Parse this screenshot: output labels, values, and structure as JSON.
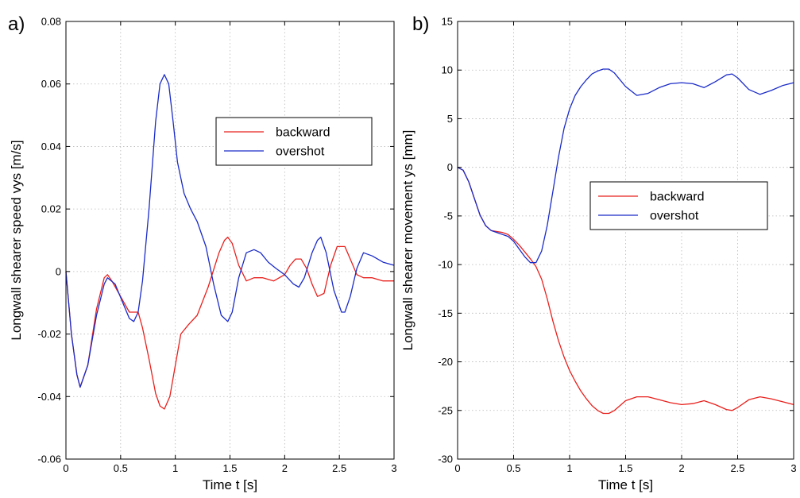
{
  "chart_data": [
    {
      "type": "line",
      "panel_label": "a)",
      "xlabel": "Time t [s]",
      "ylabel": "Longwall shearer speed vys [m/s]",
      "xlim": [
        0,
        3
      ],
      "ylim": [
        -0.06,
        0.08
      ],
      "xticks": [
        0,
        0.5,
        1,
        1.5,
        2,
        2.5,
        3
      ],
      "xtick_labels": [
        "0",
        "0.5",
        "1",
        "1.5",
        "2",
        "2.5",
        "3"
      ],
      "yticks": [
        -0.06,
        -0.04,
        -0.02,
        0,
        0.02,
        0.04,
        0.06,
        0.08
      ],
      "ytick_labels": [
        "-0.06",
        "-0.04",
        "-0.02",
        "0",
        "0.02",
        "0.04",
        "0.06",
        "0.08"
      ],
      "grid": true,
      "legend_position": "upper-right",
      "series": [
        {
          "name": "backward",
          "color": "#e8201c",
          "x": [
            0,
            0.05,
            0.1,
            0.13,
            0.2,
            0.28,
            0.35,
            0.38,
            0.42,
            0.5,
            0.58,
            0.62,
            0.66,
            0.7,
            0.76,
            0.82,
            0.86,
            0.9,
            0.95,
            1.0,
            1.05,
            1.12,
            1.2,
            1.3,
            1.4,
            1.45,
            1.48,
            1.52,
            1.58,
            1.65,
            1.72,
            1.8,
            1.9,
            2.0,
            2.05,
            2.1,
            2.15,
            2.2,
            2.25,
            2.3,
            2.36,
            2.42,
            2.48,
            2.55,
            2.6,
            2.66,
            2.72,
            2.8,
            2.9,
            3.0
          ],
          "y": [
            0,
            -0.02,
            -0.033,
            -0.037,
            -0.03,
            -0.012,
            -0.002,
            -0.001,
            -0.003,
            -0.008,
            -0.013,
            -0.013,
            -0.013,
            -0.018,
            -0.028,
            -0.039,
            -0.043,
            -0.044,
            -0.04,
            -0.03,
            -0.02,
            -0.017,
            -0.014,
            -0.005,
            0.006,
            0.01,
            0.011,
            0.009,
            0.002,
            -0.003,
            -0.002,
            -0.002,
            -0.003,
            -0.001,
            0.002,
            0.004,
            0.004,
            0.001,
            -0.004,
            -0.008,
            -0.007,
            0.002,
            0.008,
            0.008,
            0.004,
            -0.001,
            -0.002,
            -0.002,
            -0.003,
            -0.003
          ]
        },
        {
          "name": "overshot",
          "color": "#1a2bc8",
          "x": [
            0,
            0.05,
            0.1,
            0.13,
            0.2,
            0.28,
            0.35,
            0.38,
            0.45,
            0.52,
            0.58,
            0.62,
            0.66,
            0.7,
            0.76,
            0.82,
            0.86,
            0.9,
            0.94,
            0.98,
            1.02,
            1.08,
            1.14,
            1.2,
            1.28,
            1.35,
            1.42,
            1.48,
            1.52,
            1.58,
            1.65,
            1.72,
            1.78,
            1.85,
            1.92,
            2.0,
            2.08,
            2.13,
            2.18,
            2.25,
            2.3,
            2.33,
            2.38,
            2.45,
            2.52,
            2.55,
            2.6,
            2.66,
            2.72,
            2.8,
            2.9,
            3.0
          ],
          "y": [
            0,
            -0.02,
            -0.033,
            -0.037,
            -0.03,
            -0.014,
            -0.004,
            -0.002,
            -0.004,
            -0.01,
            -0.015,
            -0.016,
            -0.013,
            -0.003,
            0.02,
            0.048,
            0.06,
            0.063,
            0.06,
            0.048,
            0.035,
            0.025,
            0.02,
            0.016,
            0.008,
            -0.004,
            -0.014,
            -0.016,
            -0.013,
            -0.002,
            0.006,
            0.007,
            0.006,
            0.003,
            0.001,
            -0.001,
            -0.004,
            -0.005,
            -0.002,
            0.006,
            0.01,
            0.011,
            0.006,
            -0.006,
            -0.013,
            -0.013,
            -0.008,
            0.001,
            0.006,
            0.005,
            0.003,
            0.002
          ]
        }
      ]
    },
    {
      "type": "line",
      "panel_label": "b)",
      "xlabel": "Time t [s]",
      "ylabel": "Longwall shearer movement ys [mm]",
      "xlim": [
        0,
        3
      ],
      "ylim": [
        -30,
        15
      ],
      "xticks": [
        0,
        0.5,
        1,
        1.5,
        2,
        2.5,
        3
      ],
      "xtick_labels": [
        "0",
        "0.5",
        "1",
        "1.5",
        "2",
        "2.5",
        "3"
      ],
      "yticks": [
        -30,
        -25,
        -20,
        -15,
        -10,
        -5,
        0,
        5,
        10,
        15
      ],
      "ytick_labels": [
        "-30",
        "-25",
        "-20",
        "-15",
        "-10",
        "-5",
        "0",
        "5",
        "10",
        "15"
      ],
      "grid": true,
      "legend_position": "center-right",
      "series": [
        {
          "name": "backward",
          "color": "#e8201c",
          "x": [
            0,
            0.05,
            0.1,
            0.15,
            0.2,
            0.25,
            0.3,
            0.35,
            0.4,
            0.45,
            0.5,
            0.55,
            0.6,
            0.65,
            0.7,
            0.75,
            0.8,
            0.85,
            0.9,
            0.95,
            1.0,
            1.05,
            1.1,
            1.15,
            1.2,
            1.25,
            1.3,
            1.35,
            1.4,
            1.5,
            1.6,
            1.7,
            1.8,
            1.9,
            2.0,
            2.1,
            2.2,
            2.3,
            2.4,
            2.45,
            2.5,
            2.6,
            2.7,
            2.8,
            2.9,
            3.0
          ],
          "y": [
            0,
            -0.3,
            -1.5,
            -3.2,
            -4.9,
            -6.0,
            -6.5,
            -6.6,
            -6.7,
            -6.9,
            -7.4,
            -8.0,
            -8.7,
            -9.4,
            -10.2,
            -11.5,
            -13.5,
            -15.8,
            -17.8,
            -19.5,
            -20.9,
            -22.0,
            -23.0,
            -23.8,
            -24.5,
            -25.0,
            -25.3,
            -25.3,
            -25.0,
            -24.0,
            -23.6,
            -23.6,
            -23.9,
            -24.2,
            -24.4,
            -24.3,
            -24.0,
            -24.4,
            -24.9,
            -25.0,
            -24.7,
            -23.9,
            -23.6,
            -23.8,
            -24.1,
            -24.4
          ]
        },
        {
          "name": "overshot",
          "color": "#1a2bc8",
          "x": [
            0,
            0.05,
            0.1,
            0.15,
            0.2,
            0.25,
            0.3,
            0.35,
            0.4,
            0.45,
            0.5,
            0.55,
            0.6,
            0.65,
            0.7,
            0.75,
            0.8,
            0.85,
            0.9,
            0.95,
            1.0,
            1.05,
            1.1,
            1.15,
            1.2,
            1.25,
            1.3,
            1.35,
            1.4,
            1.5,
            1.6,
            1.7,
            1.8,
            1.9,
            2.0,
            2.1,
            2.2,
            2.3,
            2.4,
            2.45,
            2.5,
            2.6,
            2.7,
            2.8,
            2.9,
            3.0
          ],
          "y": [
            0,
            -0.3,
            -1.5,
            -3.2,
            -4.9,
            -6.0,
            -6.5,
            -6.7,
            -6.9,
            -7.1,
            -7.6,
            -8.4,
            -9.2,
            -9.8,
            -9.8,
            -8.6,
            -6.0,
            -2.5,
            1.0,
            4.0,
            6.0,
            7.4,
            8.3,
            9.0,
            9.6,
            9.9,
            10.1,
            10.1,
            9.7,
            8.3,
            7.4,
            7.6,
            8.2,
            8.6,
            8.7,
            8.6,
            8.2,
            8.8,
            9.5,
            9.6,
            9.2,
            8.0,
            7.5,
            7.9,
            8.4,
            8.7
          ]
        }
      ]
    }
  ]
}
